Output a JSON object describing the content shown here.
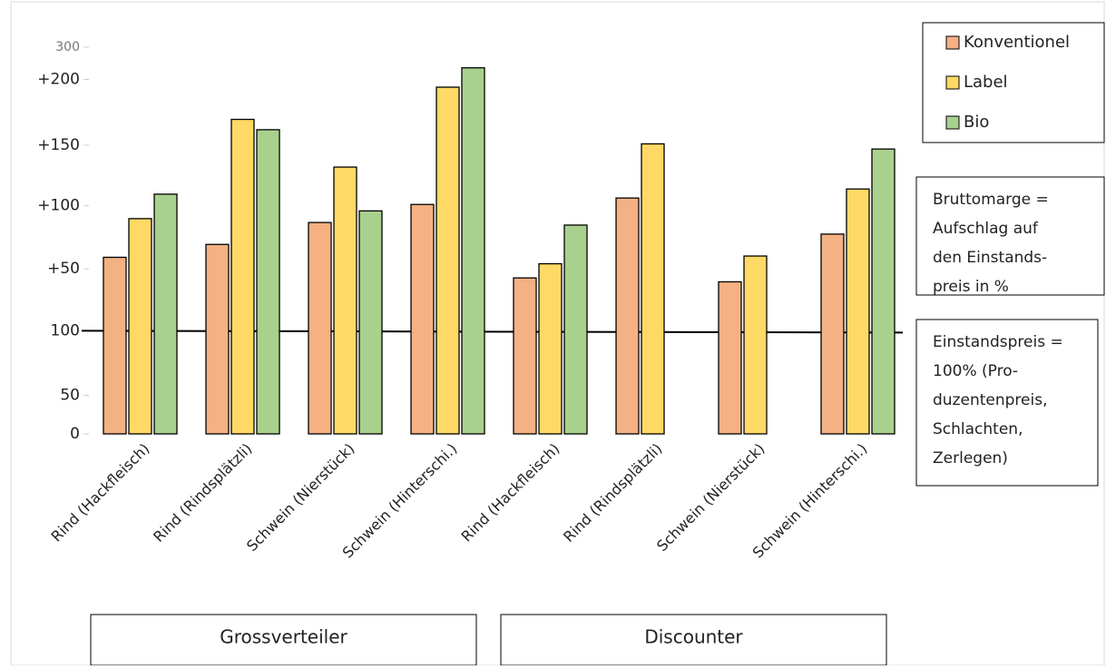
{
  "chart_data": {
    "type": "bar",
    "categories": [
      "Rind (Hackfleisch)",
      "Rind (Rindsplätzli)",
      "Schwein (Nierstück)",
      "Schwein (Hinterschi.)",
      "Rind (Hackfleisch)",
      "Rind (Rindsplätzli)",
      "Schwein (Nierstück)",
      "Schwein (Hinterschi.)"
    ],
    "series": [
      {
        "name": "Konventionel",
        "color": "#f4b183",
        "values": [
          137,
          147,
          164,
          178,
          121,
          183,
          118,
          155
        ]
      },
      {
        "name": "Label",
        "color": "#ffd966",
        "values": [
          167,
          244,
          207,
          269,
          132,
          225,
          138,
          190
        ]
      },
      {
        "name": "Bio",
        "color": "#a9d18e",
        "values": [
          186,
          236,
          173,
          284,
          162,
          null,
          null,
          221
        ]
      }
    ],
    "ylim": [
      0,
      300
    ],
    "yticks": [
      0,
      {
        "value": 30,
        "label": "50"
      },
      {
        "value": 80,
        "label": "100"
      },
      {
        "value": 128,
        "label": "+50"
      },
      {
        "value": 177,
        "label": "+100"
      },
      {
        "value": 224,
        "label": "+150"
      },
      {
        "value": 275,
        "label": "+200"
      },
      300
    ],
    "reference_line": 80,
    "legend": "top-right",
    "groups": [
      {
        "label": "Grossverteiler",
        "categories": 4
      },
      {
        "label": "Discounter",
        "categories": 4
      }
    ],
    "annotations": [
      [
        "Bruttomarge =",
        "Aufschlag auf",
        "den Einstands-",
        "preis in %"
      ],
      [
        "Einstandspreis =",
        "100% (Pro-",
        "duzentenpreis,",
        "Schlachten,",
        "Zerlegen)"
      ]
    ]
  }
}
